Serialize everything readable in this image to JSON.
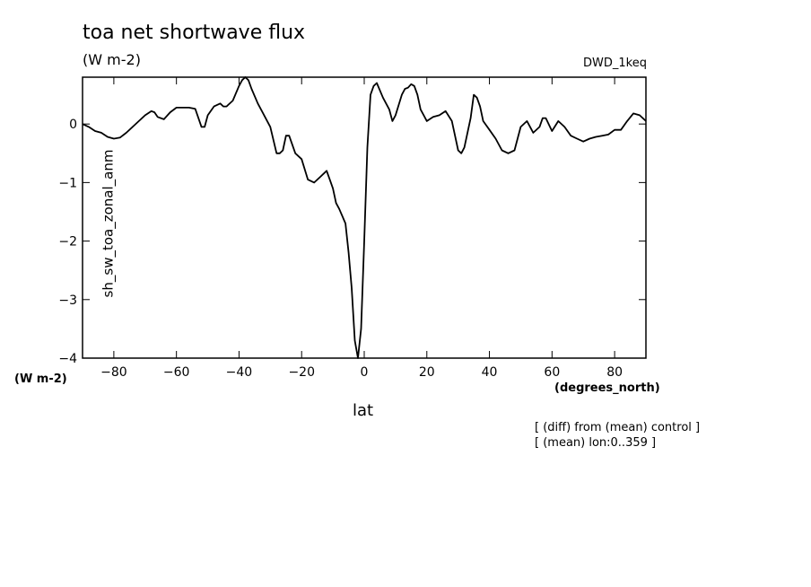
{
  "header": {
    "title": "toa net shortwave flux",
    "units": "(W m-2)",
    "run": "DWD_1keq"
  },
  "footer": {
    "note1": "[ (diff) from (mean) control ]",
    "note2": "[ (mean) lon:0..359 ]"
  },
  "chart_data": {
    "type": "line",
    "title": "toa net shortwave flux",
    "xlabel": "lat",
    "xunits": "(degrees_north)",
    "ylabel": "sh_sw_toa_zonal_anm",
    "yunits": "(W m-2)",
    "xlim": [
      -90,
      90
    ],
    "ylim": [
      -4,
      0.8
    ],
    "xticks": [
      -80,
      -60,
      -40,
      -20,
      0,
      20,
      40,
      60,
      80
    ],
    "yticks": [
      -4,
      -3,
      -2,
      -1,
      0
    ],
    "xticklabels": [
      "−80",
      "−60",
      "−40",
      "−20",
      "0",
      "20",
      "40",
      "60",
      "80"
    ],
    "yticklabels": [
      "−4",
      "−3",
      "−2",
      "−1",
      "0"
    ],
    "grid": false,
    "series": [
      {
        "x": [
          -90,
          -88,
          -86,
          -84,
          -82,
          -80,
          -78,
          -76,
          -74,
          -72,
          -70,
          -68,
          -67,
          -66,
          -64,
          -62,
          -60,
          -58,
          -56,
          -54,
          -52,
          -51,
          -50,
          -48,
          -46,
          -45,
          -44,
          -42,
          -40,
          -39,
          -38,
          -37,
          -36,
          -34,
          -32,
          -30,
          -28,
          -27,
          -26,
          -25,
          -24,
          -22,
          -20,
          -18,
          -16,
          -14,
          -12,
          -11,
          -10,
          -9,
          -8,
          -6,
          -5,
          -4,
          -3,
          -2,
          -1,
          0,
          1,
          2,
          3,
          4,
          6,
          8,
          9,
          10,
          12,
          13,
          14,
          15,
          16,
          17,
          18,
          20,
          22,
          24,
          26,
          28,
          30,
          31,
          32,
          34,
          35,
          36,
          37,
          38,
          40,
          42,
          44,
          46,
          48,
          50,
          52,
          54,
          56,
          57,
          58,
          60,
          62,
          64,
          66,
          68,
          70,
          72,
          74,
          76,
          78,
          80,
          82,
          84,
          86,
          88,
          90
        ],
        "y": [
          0.0,
          -0.05,
          -0.12,
          -0.15,
          -0.22,
          -0.25,
          -0.23,
          -0.15,
          -0.05,
          0.05,
          0.15,
          0.22,
          0.2,
          0.12,
          0.08,
          0.2,
          0.28,
          0.28,
          0.28,
          0.26,
          -0.05,
          -0.05,
          0.15,
          0.3,
          0.35,
          0.3,
          0.3,
          0.4,
          0.65,
          0.75,
          0.8,
          0.75,
          0.6,
          0.35,
          0.15,
          -0.05,
          -0.5,
          -0.5,
          -0.45,
          -0.2,
          -0.2,
          -0.5,
          -0.6,
          -0.95,
          -1.0,
          -0.9,
          -0.8,
          -0.95,
          -1.1,
          -1.35,
          -1.45,
          -1.7,
          -2.2,
          -2.8,
          -3.7,
          -4.0,
          -3.5,
          -2.0,
          -0.4,
          0.5,
          0.65,
          0.7,
          0.45,
          0.25,
          0.05,
          0.15,
          0.5,
          0.6,
          0.62,
          0.68,
          0.65,
          0.5,
          0.25,
          0.05,
          0.12,
          0.15,
          0.22,
          0.05,
          -0.45,
          -0.5,
          -0.4,
          0.1,
          0.5,
          0.45,
          0.3,
          0.05,
          -0.1,
          -0.25,
          -0.45,
          -0.5,
          -0.45,
          -0.05,
          0.05,
          -0.15,
          -0.05,
          0.1,
          0.1,
          -0.12,
          0.05,
          -0.05,
          -0.2,
          -0.25,
          -0.3,
          -0.25,
          -0.22,
          -0.2,
          -0.18,
          -0.1,
          -0.1,
          0.05,
          0.18,
          0.15,
          0.05
        ]
      }
    ]
  }
}
